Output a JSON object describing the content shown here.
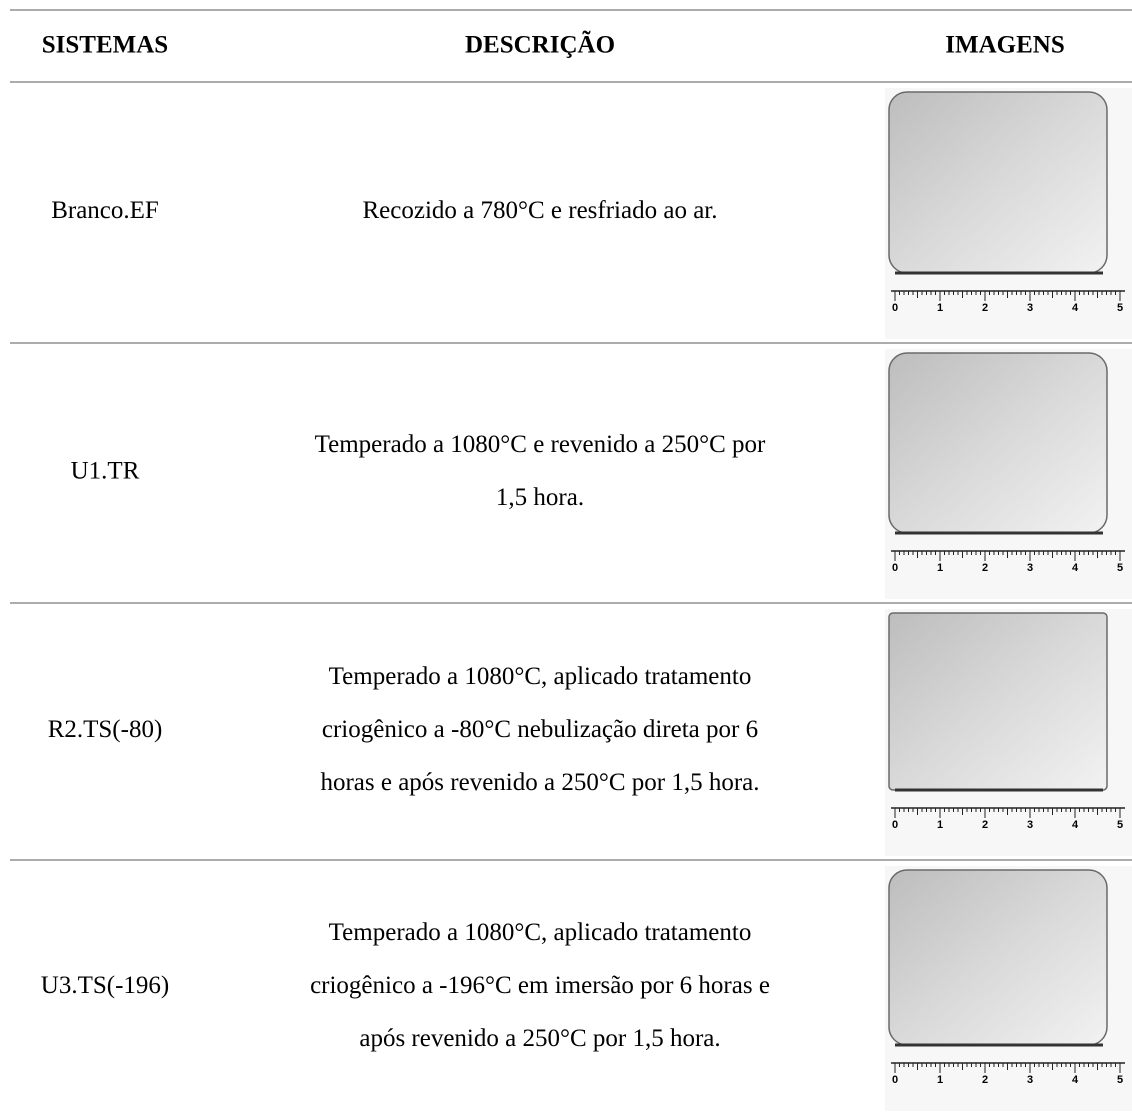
{
  "table": {
    "headers": [
      "SISTEMAS",
      "DESCRIÇÃO",
      "IMAGENS"
    ],
    "rows": [
      {
        "system": "Branco.EF",
        "description": [
          "Recozido a 780°C e resfriado ao ar."
        ]
      },
      {
        "system": "U1.TR",
        "description": [
          "Temperado a 1080°C e revenido a 250°C por",
          "1,5 hora."
        ]
      },
      {
        "system": "R2.TS(-80)",
        "description": [
          "Temperado a 1080°C, aplicado tratamento",
          "criogênico a -80°C nebulização direta por 6",
          "horas e após revenido a 250°C por 1,5 hora."
        ]
      },
      {
        "system": "U3.TS(-196)",
        "description": [
          "Temperado a 1080°C, aplicado tratamento",
          "criogênico a -196°C em imersão por 6 horas e",
          "após revenido a 250°C por 1,5 hora."
        ]
      }
    ],
    "ruler_labels": [
      "0",
      "1",
      "2",
      "3",
      "4",
      "5"
    ]
  }
}
